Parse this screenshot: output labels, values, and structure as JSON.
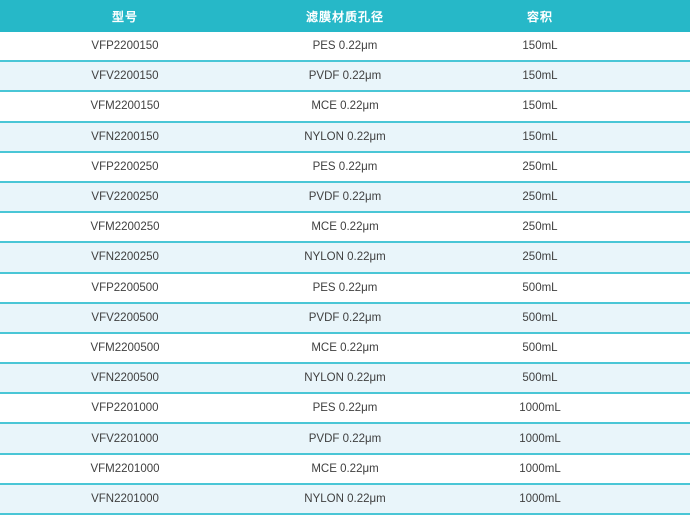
{
  "table": {
    "columns": [
      {
        "key": "model",
        "label": "型号"
      },
      {
        "key": "membrane",
        "label": "滤膜材质孔径"
      },
      {
        "key": "volume",
        "label": "容积"
      }
    ],
    "rows": [
      {
        "model": "VFP2200150",
        "membrane": "PES 0.22μm",
        "volume": "150mL"
      },
      {
        "model": "VFV2200150",
        "membrane": "PVDF 0.22μm",
        "volume": "150mL"
      },
      {
        "model": "VFM2200150",
        "membrane": "MCE 0.22μm",
        "volume": "150mL"
      },
      {
        "model": "VFN2200150",
        "membrane": "NYLON 0.22μm",
        "volume": "150mL"
      },
      {
        "model": "VFP2200250",
        "membrane": "PES 0.22μm",
        "volume": "250mL"
      },
      {
        "model": "VFV2200250",
        "membrane": "PVDF 0.22μm",
        "volume": "250mL"
      },
      {
        "model": "VFM2200250",
        "membrane": "MCE 0.22μm",
        "volume": "250mL"
      },
      {
        "model": "VFN2200250",
        "membrane": "NYLON 0.22μm",
        "volume": "250mL"
      },
      {
        "model": "VFP2200500",
        "membrane": "PES 0.22μm",
        "volume": "500mL"
      },
      {
        "model": "VFV2200500",
        "membrane": "PVDF 0.22μm",
        "volume": "500mL"
      },
      {
        "model": "VFM2200500",
        "membrane": "MCE 0.22μm",
        "volume": "500mL"
      },
      {
        "model": "VFN2200500",
        "membrane": "NYLON 0.22μm",
        "volume": "500mL"
      },
      {
        "model": "VFP2201000",
        "membrane": "PES 0.22μm",
        "volume": "1000mL"
      },
      {
        "model": "VFV2201000",
        "membrane": "PVDF 0.22μm",
        "volume": "1000mL"
      },
      {
        "model": "VFM2201000",
        "membrane": "MCE 0.22μm",
        "volume": "1000mL"
      },
      {
        "model": "VFN2201000",
        "membrane": "NYLON 0.22μm",
        "volume": "1000mL"
      }
    ]
  },
  "colors": {
    "header_bg": "#26b8c8",
    "header_text": "#ffffff",
    "row_alt_bg": "#e9f5fa",
    "border": "#4ac6d6",
    "cell_text": "#404040"
  }
}
